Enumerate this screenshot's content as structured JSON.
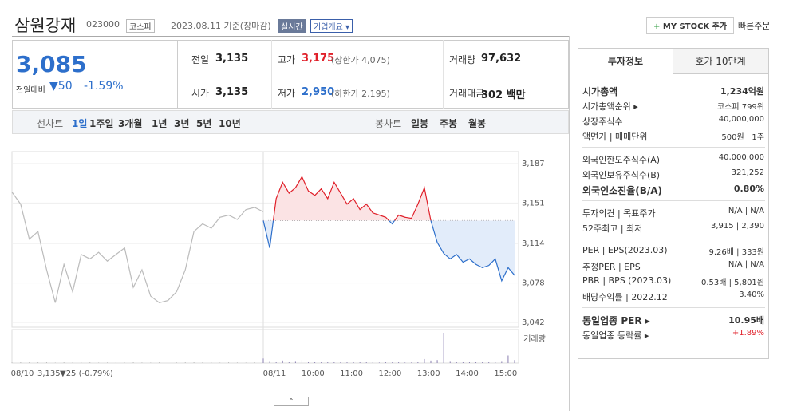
{
  "header": {
    "name": "삼원강재",
    "code": "023000",
    "market": "코스피",
    "date": "2023.08.11 기준(장마감)",
    "realtime": "실시간",
    "overview": "기업개요 ▾",
    "mystock": "MY STOCK 추가",
    "quick": "빠른주문"
  },
  "price": {
    "current": "3,085",
    "change_label": "전일대비",
    "change": "50",
    "change_pct": "-1.59%"
  },
  "quote": [
    {
      "label": "전일",
      "value": "3,135"
    },
    {
      "label": "고가",
      "value": "3,175",
      "extra": "(상한가 4,075)"
    },
    {
      "label": "거래량",
      "value": "97,632"
    },
    {
      "label": "시가",
      "value": "3,135"
    },
    {
      "label": "저가",
      "value": "2,950",
      "extra": "(하한가 2,195)"
    },
    {
      "label": "거래대금",
      "value": "302 백만"
    }
  ],
  "tabs": {
    "line_label": "선차트",
    "periods": [
      "1일",
      "1주일",
      "3개월",
      "1년",
      "3년",
      "5년",
      "10년"
    ],
    "candle_label": "봉차트",
    "candles": [
      "일봉",
      "주봉",
      "월봉"
    ]
  },
  "chart_data": {
    "type": "line",
    "ylim": [
      3042,
      3187
    ],
    "yticks": [
      {
        "value": 3187,
        "label": "3,187"
      },
      {
        "value": 3151,
        "label": "3,151"
      },
      {
        "value": 3114,
        "label": "3,114"
      },
      {
        "value": 3078,
        "label": "3,078"
      },
      {
        "value": 3042,
        "label": "3,042"
      }
    ],
    "grid": true,
    "baseline": 3135,
    "xlabels": [
      "08/10",
      "08/11",
      "10:00",
      "11:00",
      "12:00",
      "13:00",
      "14:00",
      "15:00"
    ],
    "prev_close_label": "3,135",
    "prev_change_label": "▼25 (-0.79%)",
    "volume_label": "거래량",
    "series": [
      {
        "name": "08/10",
        "color": "#bbbbbb",
        "values": [
          3161,
          3150,
          3118,
          3125,
          3090,
          3060,
          3095,
          3070,
          3104,
          3100,
          3106,
          3098,
          3104,
          3110,
          3074,
          3090,
          3066,
          3060,
          3062,
          3070,
          3090,
          3125,
          3132,
          3128,
          3138,
          3140,
          3136,
          3145,
          3147,
          3143
        ],
        "volume": [
          300,
          200,
          250,
          150,
          200,
          100,
          150,
          120,
          100,
          150,
          100,
          120,
          90,
          100,
          300,
          120,
          100,
          150,
          100,
          120,
          200,
          250,
          150,
          120,
          100,
          150,
          120,
          100,
          150,
          400
        ]
      },
      {
        "name": "08/11",
        "color_up": "#e0202a",
        "color_down": "#2d6fcb",
        "values": [
          3135,
          3110,
          3155,
          3170,
          3160,
          3165,
          3175,
          3162,
          3158,
          3164,
          3155,
          3170,
          3160,
          3150,
          3155,
          3145,
          3150,
          3142,
          3140,
          3138,
          3132,
          3140,
          3138,
          3137,
          3150,
          3165,
          3135,
          3115,
          3105,
          3100,
          3104,
          3097,
          3100,
          3095,
          3092,
          3094,
          3100,
          3080,
          3092,
          3085
        ],
        "volume": [
          900,
          400,
          300,
          500,
          300,
          400,
          600,
          300,
          250,
          300,
          200,
          250,
          200,
          150,
          200,
          150,
          200,
          150,
          100,
          150,
          120,
          150,
          100,
          120,
          300,
          800,
          500,
          600,
          6000,
          400,
          300,
          200,
          250,
          200,
          150,
          200,
          300,
          400,
          1500,
          600
        ]
      }
    ]
  },
  "panel": {
    "tabs": [
      "투자정보",
      "호가 10단계"
    ],
    "groups": [
      [
        {
          "label": "시가총액",
          "value": "1,234억원"
        },
        {
          "label": "시가총액순위 ▸",
          "value": "코스피 799위"
        },
        {
          "label": "상장주식수",
          "value": "40,000,000"
        },
        {
          "label": "액면가 | 매매단위",
          "value": "500원 | 1주"
        }
      ],
      [
        {
          "label": "외국인한도주식수(A)",
          "value": "40,000,000"
        },
        {
          "label": "외국인보유주식수(B)",
          "value": "321,252"
        },
        {
          "label": "외국인소진율(B/A)",
          "value": "0.80%"
        }
      ],
      [
        {
          "label": "투자의견 | 목표주가",
          "value": "N/A | N/A"
        },
        {
          "label": "52주최고 | 최저",
          "value": "3,915 | 2,390"
        }
      ],
      [
        {
          "label": "PER | EPS(2023.03)",
          "value": "9.26배 | 333원"
        },
        {
          "label": "추정PER | EPS",
          "value": "N/A | N/A"
        },
        {
          "label": "PBR | BPS (2023.03)",
          "value": "0.53배 | 5,801원"
        },
        {
          "label": "배당수익률 | 2022.12",
          "value": "3.40%"
        }
      ],
      [
        {
          "label": "동일업종 PER ▸",
          "value": "10.95배"
        },
        {
          "label": "동일업종 등락률 ▸",
          "value": "+1.89%"
        }
      ]
    ]
  }
}
